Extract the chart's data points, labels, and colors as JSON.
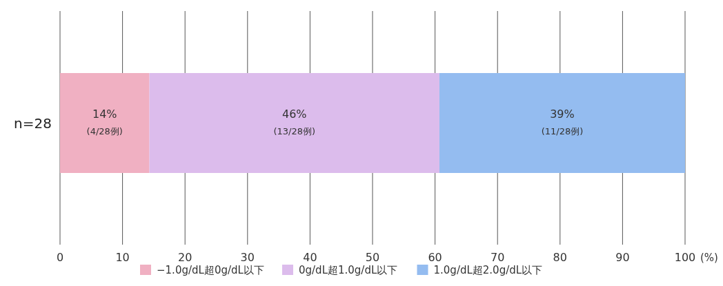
{
  "chart_data": {
    "type": "bar",
    "orientation": "horizontal",
    "stacked": true,
    "categories": [
      "n=28"
    ],
    "series": [
      {
        "name": "−1.0g/dL超0g/dL以下",
        "color": "#f0b0c2",
        "values": [
          14.3
        ],
        "value_labels": [
          "14%\n(4/28例)"
        ]
      },
      {
        "name": "0g/dL超1.0g/dL以下",
        "color": "#dcbcec",
        "values": [
          46.4
        ],
        "value_labels": [
          "46%\n(13/28例)"
        ]
      },
      {
        "name": "1.0g/dL超2.0g/dL以下",
        "color": "#94bcf0",
        "values": [
          39.3
        ],
        "value_labels": [
          "39%\n(11/28例)"
        ]
      }
    ],
    "xlim": [
      0,
      100
    ],
    "xticks": [
      0,
      10,
      20,
      30,
      40,
      50,
      60,
      70,
      80,
      90,
      100
    ],
    "xlabel": "(%)",
    "grid": "x",
    "legend": "bottom"
  }
}
